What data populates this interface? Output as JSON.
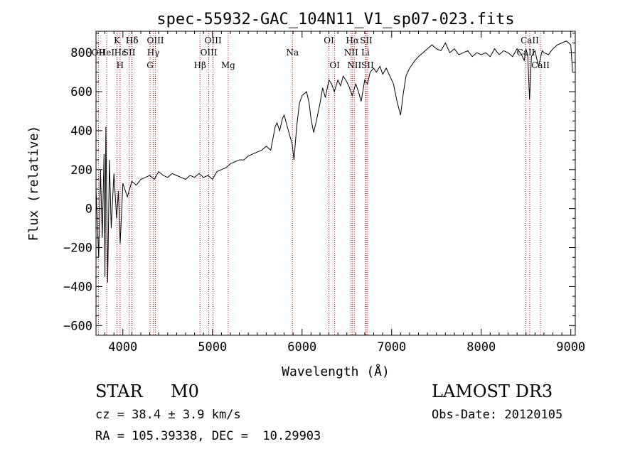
{
  "chart_data": {
    "type": "line",
    "title": "spec-55932-GAC_104N11_V1_sp07-023.fits",
    "xlabel": "Wavelength (Å)",
    "ylabel": "Flux (relative)",
    "xlim": [
      3700,
      9050
    ],
    "ylim": [
      -650,
      910
    ],
    "x_ticks": [
      4000,
      5000,
      6000,
      7000,
      8000,
      9000
    ],
    "x_tick_labels": [
      "4000",
      "5000",
      "6000",
      "7000",
      "8000",
      "9000"
    ],
    "y_ticks": [
      -600,
      -400,
      -200,
      0,
      200,
      400,
      600,
      800
    ],
    "y_tick_labels": [
      "−600",
      "−400",
      "−200",
      "0",
      "200",
      "400",
      "600",
      "800"
    ],
    "series": [
      {
        "name": "spectrum",
        "x": [
          3700,
          3730,
          3750,
          3770,
          3790,
          3800,
          3810,
          3830,
          3850,
          3870,
          3900,
          3930,
          3950,
          3970,
          4000,
          4050,
          4100,
          4150,
          4200,
          4250,
          4300,
          4350,
          4400,
          4450,
          4500,
          4550,
          4600,
          4650,
          4700,
          4750,
          4800,
          4850,
          4900,
          4950,
          5000,
          5050,
          5100,
          5150,
          5200,
          5250,
          5300,
          5350,
          5400,
          5450,
          5500,
          5550,
          5600,
          5650,
          5700,
          5720,
          5750,
          5780,
          5800,
          5830,
          5860,
          5890,
          5910,
          5940,
          5970,
          6000,
          6050,
          6080,
          6100,
          6130,
          6160,
          6200,
          6230,
          6260,
          6300,
          6330,
          6360,
          6400,
          6430,
          6460,
          6500,
          6530,
          6560,
          6600,
          6630,
          6660,
          6700,
          6730,
          6760,
          6800,
          6830,
          6870,
          6900,
          6940,
          6980,
          7020,
          7060,
          7100,
          7130,
          7160,
          7200,
          7260,
          7300,
          7350,
          7400,
          7450,
          7500,
          7550,
          7600,
          7650,
          7700,
          7750,
          7800,
          7850,
          7900,
          7950,
          8000,
          8050,
          8100,
          8150,
          8200,
          8250,
          8300,
          8350,
          8400,
          8450,
          8480,
          8500,
          8520,
          8540,
          8560,
          8600,
          8640,
          8660,
          8680,
          8700,
          8750,
          8800,
          8850,
          8900,
          8950,
          9000,
          9020
        ],
        "y": [
          100,
          -250,
          200,
          -150,
          280,
          -350,
          420,
          -380,
          250,
          -100,
          180,
          -50,
          90,
          -180,
          130,
          60,
          140,
          120,
          150,
          160,
          170,
          150,
          190,
          170,
          160,
          180,
          170,
          160,
          150,
          170,
          160,
          180,
          160,
          170,
          150,
          190,
          200,
          210,
          230,
          240,
          250,
          250,
          270,
          280,
          290,
          300,
          320,
          300,
          420,
          440,
          400,
          460,
          480,
          430,
          380,
          330,
          250,
          420,
          540,
          580,
          600,
          540,
          460,
          390,
          450,
          540,
          620,
          570,
          660,
          640,
          600,
          660,
          630,
          680,
          650,
          620,
          580,
          640,
          600,
          550,
          660,
          640,
          700,
          720,
          700,
          730,
          690,
          720,
          680,
          640,
          550,
          480,
          590,
          680,
          720,
          760,
          780,
          800,
          820,
          840,
          820,
          810,
          850,
          800,
          820,
          790,
          800,
          810,
          780,
          800,
          790,
          800,
          780,
          820,
          790,
          810,
          800,
          780,
          820,
          790,
          760,
          820,
          780,
          560,
          780,
          810,
          730,
          770,
          810,
          800,
          790,
          820,
          840,
          850,
          860,
          840,
          700
        ],
        "values_approximate": true
      }
    ],
    "lines": [
      {
        "label": "Hδ",
        "wl": 4102,
        "row": 1
      },
      {
        "label": "OII",
        "wl": 3727,
        "row": 2
      },
      {
        "label": "HeI",
        "wl": 3819,
        "row": 2
      },
      {
        "label": "K",
        "wl": 3934,
        "row": 1
      },
      {
        "label": "Hε",
        "wl": 3970,
        "row": 2
      },
      {
        "label": "H",
        "wl": 3969,
        "row": 3
      },
      {
        "label": "SII",
        "wl": 4070,
        "row": 2
      },
      {
        "label": "Hδ",
        "wl": 4102,
        "row": 1
      },
      {
        "label": "OIII",
        "wl": 4363,
        "row": 1
      },
      {
        "label": "Hγ",
        "wl": 4340,
        "row": 2
      },
      {
        "label": "G",
        "wl": 4304,
        "row": 3
      },
      {
        "label": "Hβ",
        "wl": 4861,
        "row": 3
      },
      {
        "label": "OIII",
        "wl": 5007,
        "row": 1
      },
      {
        "label": "OIII",
        "wl": 4959,
        "row": 2
      },
      {
        "label": "Mg",
        "wl": 5175,
        "row": 3
      },
      {
        "label": "Na",
        "wl": 5893,
        "row": 2
      },
      {
        "label": "OI",
        "wl": 6300,
        "row": 1
      },
      {
        "label": "OI",
        "wl": 6364,
        "row": 3
      },
      {
        "label": "Hα",
        "wl": 6563,
        "row": 1
      },
      {
        "label": "SII",
        "wl": 6716,
        "row": 1
      },
      {
        "label": "NII",
        "wl": 6548,
        "row": 2
      },
      {
        "label": "Li",
        "wl": 6708,
        "row": 2
      },
      {
        "label": "NII",
        "wl": 6583,
        "row": 3
      },
      {
        "label": "SII",
        "wl": 6731,
        "row": 3
      },
      {
        "label": "CaII",
        "wl": 8542,
        "row": 1
      },
      {
        "label": "CaII",
        "wl": 8498,
        "row": 2
      },
      {
        "label": "CaII",
        "wl": 8662,
        "row": 3
      }
    ]
  },
  "info": {
    "class": "STAR",
    "subclass": "M0",
    "survey": "LAMOST DR3",
    "cz": "cz = 38.4 ± 3.9 km/s",
    "obs_date": "Obs-Date: 20120105",
    "coords": "RA = 105.39338, DEC =  10.29903"
  }
}
